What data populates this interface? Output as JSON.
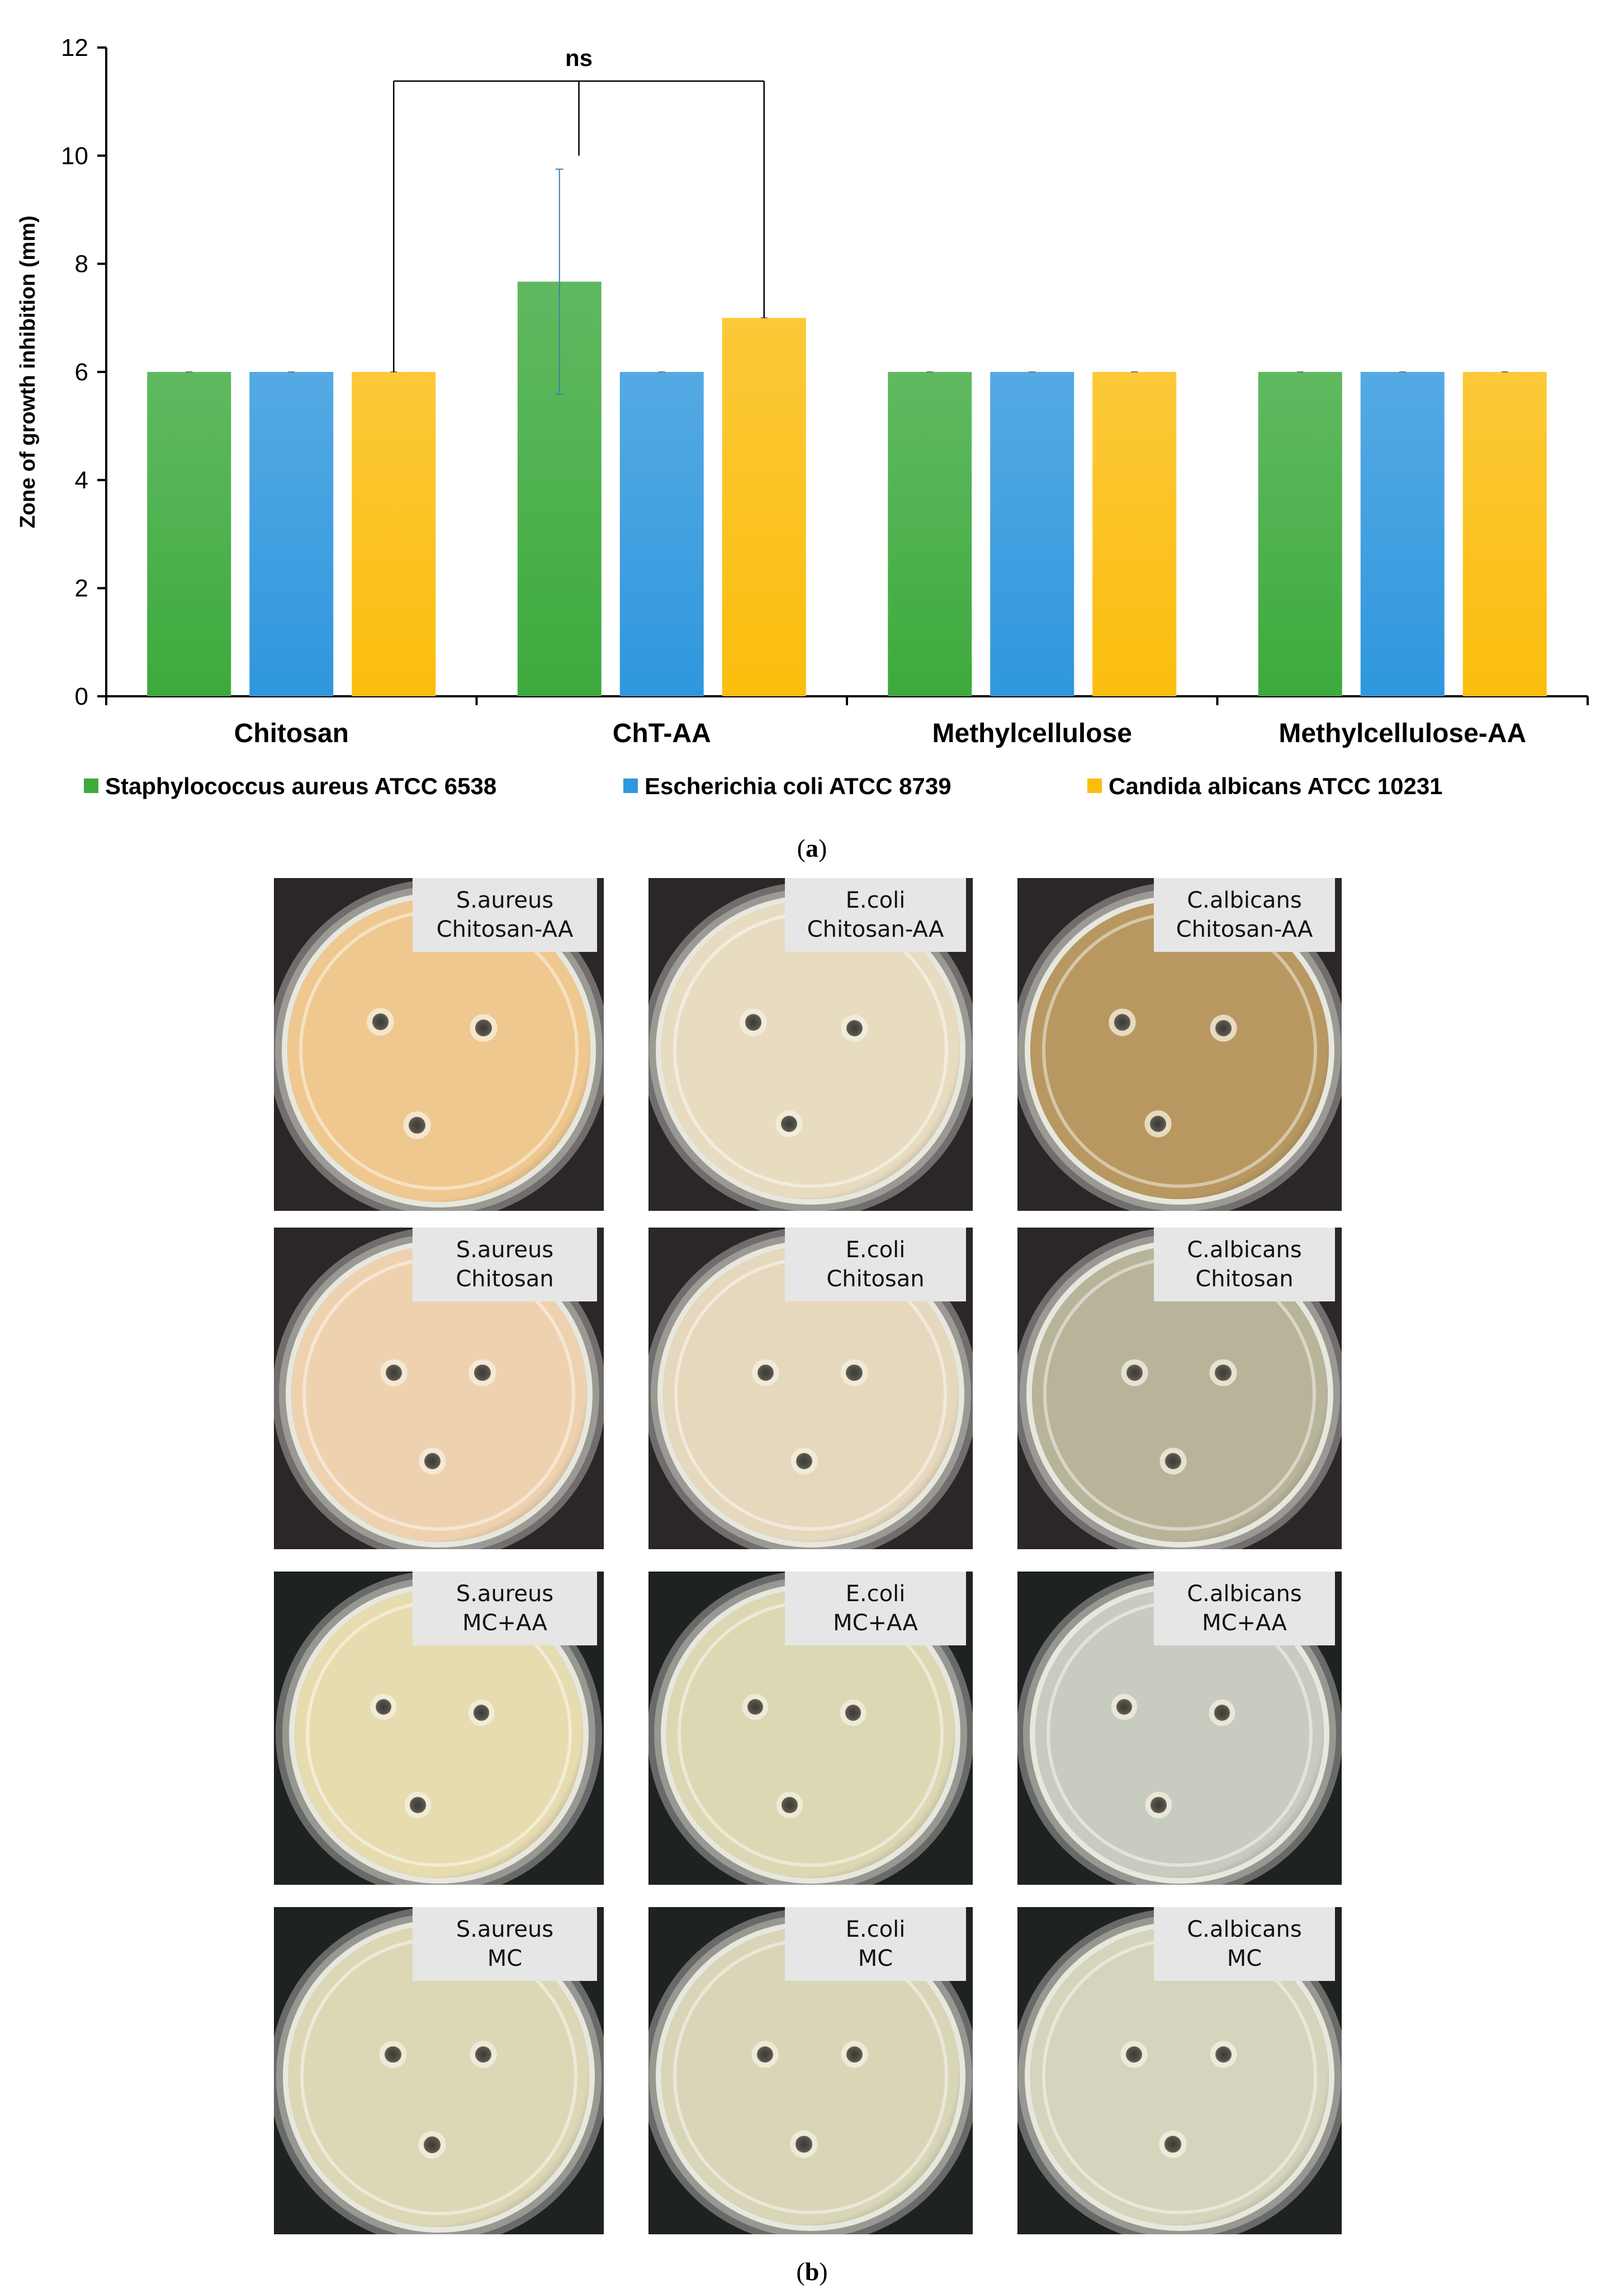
{
  "chart_data": {
    "type": "bar",
    "ylabel": "Zone of growth inhibition (mm)",
    "xlabel": "",
    "ylim": [
      0,
      12
    ],
    "yticks": [
      0,
      2,
      4,
      6,
      8,
      10,
      12
    ],
    "grid": false,
    "legend_position": "bottom",
    "categories": [
      "Chitosan",
      "ChT-AA",
      "Methylcellulose",
      "Methylcellulose-AA"
    ],
    "series": [
      {
        "name": "Staphylococcus aureus ATCC 6538",
        "color": "#3daa3d",
        "values": [
          6,
          7.67,
          6,
          6
        ],
        "errors": [
          0,
          2.08,
          0,
          0
        ]
      },
      {
        "name": "Escherichia coli ATCC 8739",
        "color": "#2f97dd",
        "values": [
          6,
          6,
          6,
          6
        ],
        "errors": [
          0,
          0,
          0,
          0
        ]
      },
      {
        "name": "Candida albicans ATCC 10231",
        "color": "#fbbd0d",
        "values": [
          6,
          7,
          6,
          6
        ],
        "errors": [
          0,
          0,
          0,
          0
        ]
      }
    ],
    "annotation": {
      "text": "ns",
      "from": "Chitosan / Candida albicans ATCC 10231",
      "to": "ChT-AA / Candida albicans ATCC 10231"
    }
  },
  "captions": {
    "a": "a",
    "b": "b"
  },
  "photo_panels": [
    {
      "line1": "S.aureus",
      "line2": "Chitosan-AA",
      "plate": "#efc88f",
      "bg": "#2b2728"
    },
    {
      "line1": "E.coli",
      "line2": "Chitosan-AA",
      "plate": "#e8dcc0",
      "bg": "#2b2728"
    },
    {
      "line1": "C.albicans",
      "line2": "Chitosan-AA",
      "plate": "#b89860",
      "bg": "#2b2728"
    },
    {
      "line1": "S.aureus",
      "line2": "Chitosan",
      "plate": "#eed2b0",
      "bg": "#2b2728"
    },
    {
      "line1": "E.coli",
      "line2": "Chitosan",
      "plate": "#e6d8bc",
      "bg": "#2b2728"
    },
    {
      "line1": "C.albicans",
      "line2": "Chitosan",
      "plate": "#b8b49a",
      "bg": "#2b2728"
    },
    {
      "line1": "S.aureus",
      "line2": "MC+AA",
      "plate": "#e6dcb0",
      "bg": "#1f2222"
    },
    {
      "line1": "E.coli",
      "line2": "MC+AA",
      "plate": "#dcd8b4",
      "bg": "#1f2222"
    },
    {
      "line1": "C.albicans",
      "line2": "MC+AA",
      "plate": "#c8ccc0",
      "bg": "#1f2222"
    },
    {
      "line1": "S.aureus",
      "line2": "MC",
      "plate": "#dcd8b6",
      "bg": "#1f2222"
    },
    {
      "line1": "E.coli",
      "line2": "MC",
      "plate": "#d8d6b6",
      "bg": "#1f2222"
    },
    {
      "line1": "C.albicans",
      "line2": "MC",
      "plate": "#d6d4bc",
      "bg": "#1f2222"
    }
  ]
}
